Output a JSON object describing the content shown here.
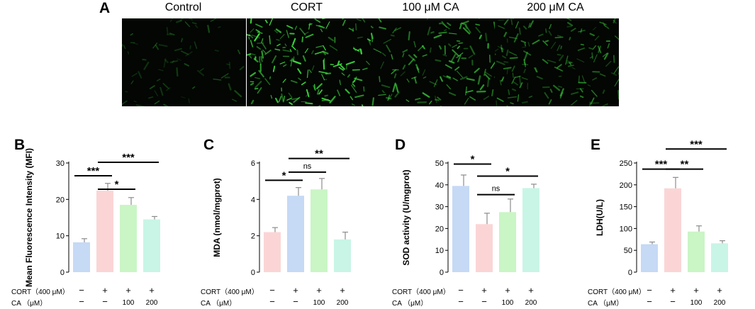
{
  "panel_a": {
    "letter": "A",
    "images": [
      {
        "label": "Control",
        "density": 70,
        "brightness": 0.35
      },
      {
        "label": "CORT",
        "density": 170,
        "brightness": 1.0
      },
      {
        "label": "100 μM CA",
        "density": 130,
        "brightness": 0.8
      },
      {
        "label": "200 μM CA",
        "density": 150,
        "brightness": 0.6
      }
    ]
  },
  "colors": {
    "blue": "#c6d9f5",
    "pink": "#fbd5d6",
    "green": "#caf5c5",
    "mint": "#c8f5e6",
    "cell": "#3dd63d",
    "error": "#8c8c8c"
  },
  "conditions": {
    "cort_label": "CORT（400 μM）",
    "ca_label": "CA （μM）",
    "cort": [
      "−",
      "+",
      "+",
      "+"
    ],
    "ca": [
      "−",
      "−",
      "100",
      "200"
    ]
  },
  "chart_data": [
    {
      "letter": "B",
      "type": "bar",
      "ylabel": "Mean Fluorescence Intensity (MFI)",
      "ylim": [
        0,
        30
      ],
      "yticks": [
        "0",
        "10",
        "20",
        "30"
      ],
      "values": [
        8.2,
        22.4,
        18.5,
        14.5
      ],
      "errors": [
        1.0,
        2.0,
        2.0,
        0.8
      ],
      "colors": [
        "#c6d9f5",
        "#fbd5d6",
        "#caf5c5",
        "#c8f5e6"
      ],
      "significance": [
        {
          "from": 0,
          "to": 1,
          "label": "***",
          "y": 26.5
        },
        {
          "from": 1,
          "to": 2,
          "label": "*",
          "y": 22.8
        },
        {
          "from": 1,
          "to": 3,
          "label": "***",
          "y": 30.2
        }
      ]
    },
    {
      "letter": "C",
      "type": "bar",
      "ylabel": "MDA (nmol/mgprot)",
      "ylim": [
        0,
        6
      ],
      "yticks": [
        "0",
        "2",
        "4",
        "6"
      ],
      "values": [
        2.2,
        4.2,
        4.55,
        1.8
      ],
      "errors": [
        0.25,
        0.45,
        0.6,
        0.4
      ],
      "colors": [
        "#fbd5d6",
        "#c6d9f5",
        "#caf5c5",
        "#c8f5e6"
      ],
      "significance": [
        {
          "from": 0,
          "to": 1,
          "label": "*",
          "y": 5.05
        },
        {
          "from": 1,
          "to": 2,
          "label": "ns",
          "y": 5.5
        },
        {
          "from": 1,
          "to": 3,
          "label": "**",
          "y": 6.25
        }
      ]
    },
    {
      "letter": "D",
      "type": "bar",
      "ylabel": "SOD activity (U/mgprot)",
      "ylim": [
        0,
        50
      ],
      "yticks": [
        "0",
        "10",
        "20",
        "30",
        "40",
        "50"
      ],
      "values": [
        39.5,
        22.0,
        27.5,
        38.5
      ],
      "errors": [
        5.0,
        5.0,
        6.0,
        1.8
      ],
      "colors": [
        "#c6d9f5",
        "#fbd5d6",
        "#caf5c5",
        "#c8f5e6"
      ],
      "significance": [
        {
          "from": 0,
          "to": 1,
          "label": "*",
          "y": 49.5
        },
        {
          "from": 1,
          "to": 2,
          "label": "ns",
          "y": 35.5
        },
        {
          "from": 1,
          "to": 3,
          "label": "*",
          "y": 44.0
        }
      ]
    },
    {
      "letter": "E",
      "type": "bar",
      "ylabel": "LDH(U/L)",
      "ylim": [
        0,
        250
      ],
      "yticks": [
        "0",
        "50",
        "100",
        "150",
        "200",
        "250"
      ],
      "values": [
        64,
        192,
        93,
        66
      ],
      "errors": [
        5,
        25,
        13,
        6
      ],
      "colors": [
        "#c6d9f5",
        "#fbd5d6",
        "#caf5c5",
        "#c8f5e6"
      ],
      "significance": [
        {
          "from": 0,
          "to": 1,
          "label": "***",
          "y": 236
        },
        {
          "from": 1,
          "to": 2,
          "label": "**",
          "y": 236
        },
        {
          "from": 1,
          "to": 3,
          "label": "***",
          "y": 282
        }
      ]
    }
  ]
}
